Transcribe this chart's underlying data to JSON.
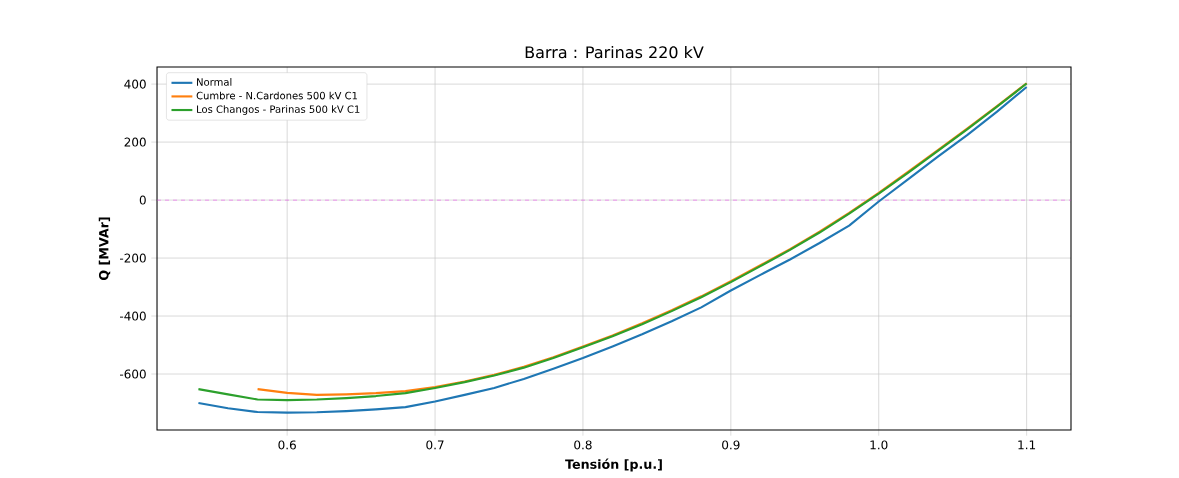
{
  "chart_data": {
    "type": "line",
    "title": "Barra : Parinas 220 kV",
    "xlabel": "**Tensión [p.u.]**",
    "ylabel": "**Q [MVAr]**",
    "xlim": [
      0.512,
      1.13
    ],
    "ylim": [
      -793,
      459
    ],
    "xticks": [
      0.6,
      0.7,
      0.8,
      0.9,
      {
        "value": 1.0,
        "label": "1.0"
      },
      1.1
    ],
    "yticks": [
      -600,
      -400,
      -200,
      0,
      200,
      400
    ],
    "grid": true,
    "legend": "top left",
    "line_style": "solid",
    "marker": "none",
    "ref_lines": [
      {
        "axis": "y",
        "value": 0,
        "color": "#ee44ee",
        "line_style": "dashed"
      }
    ],
    "series": [
      {
        "name": "Normal",
        "color": "#1f77b4",
        "x": [
          0.54,
          0.56,
          0.58,
          0.6,
          0.62,
          0.64,
          0.66,
          0.68,
          0.7,
          0.72,
          0.74,
          0.76,
          0.78,
          0.8,
          0.82,
          0.84,
          0.86,
          0.88,
          0.9,
          0.92,
          0.94,
          0.96,
          0.98,
          1.0,
          1.02,
          1.04,
          1.06,
          1.08,
          1.1
        ],
        "values": [
          -700,
          -718,
          -731,
          -733,
          -732,
          -728,
          -722,
          -714,
          -695,
          -672,
          -648,
          -617,
          -582,
          -545,
          -505,
          -463,
          -418,
          -370,
          -312,
          -258,
          -205,
          -148,
          -88,
          -5,
          72,
          150,
          225,
          305,
          390
        ]
      },
      {
        "name": "Cumbre - N.Cardones 500 kV C1",
        "color": "#ff7f0e",
        "x": [
          0.58,
          0.6,
          0.62,
          0.64,
          0.66,
          0.68,
          0.7,
          0.72,
          0.74,
          0.76,
          0.78,
          0.8,
          0.82,
          0.84,
          0.86,
          0.88,
          0.9,
          0.92,
          0.94,
          0.96,
          0.98,
          1.0,
          1.02,
          1.04,
          1.06,
          1.08,
          1.1
        ],
        "values": [
          -652,
          -665,
          -672,
          -670,
          -666,
          -659,
          -645,
          -626,
          -603,
          -575,
          -542,
          -505,
          -467,
          -425,
          -380,
          -332,
          -280,
          -225,
          -169,
          -109,
          -44,
          25,
          98,
          172,
          247,
          324,
          403
        ]
      },
      {
        "name": "Los Changos - Parinas 500 kV C1",
        "color": "#2ca02c",
        "x": [
          0.54,
          0.56,
          0.58,
          0.6,
          0.62,
          0.64,
          0.66,
          0.68,
          0.7,
          0.72,
          0.74,
          0.76,
          0.78,
          0.8,
          0.82,
          0.84,
          0.86,
          0.88,
          0.9,
          0.92,
          0.94,
          0.96,
          0.98,
          1.0,
          1.02,
          1.04,
          1.06,
          1.08,
          1.1
        ],
        "values": [
          -652,
          -670,
          -688,
          -690,
          -688,
          -683,
          -676,
          -666,
          -648,
          -628,
          -605,
          -578,
          -545,
          -508,
          -470,
          -428,
          -383,
          -335,
          -283,
          -228,
          -172,
          -112,
          -47,
          22,
          95,
          170,
          245,
          322,
          402
        ]
      }
    ]
  }
}
